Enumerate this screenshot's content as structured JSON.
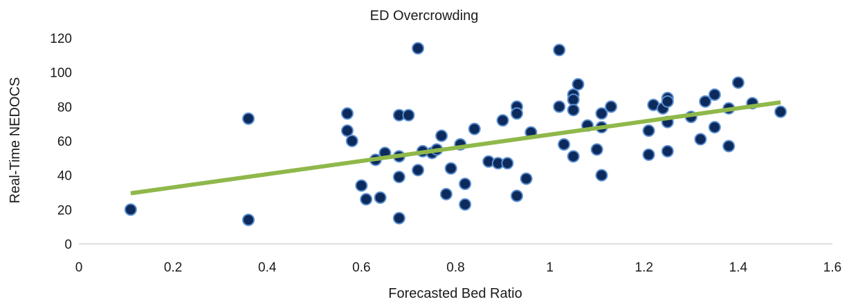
{
  "chart_data": {
    "type": "scatter",
    "title": "ED Overcrowding",
    "xlabel": "Forecasted Bed Ratio",
    "ylabel": "Real-Time NEDOCS",
    "xlim": [
      0,
      1.6
    ],
    "ylim": [
      0,
      120
    ],
    "x_ticks": [
      "0",
      "0.2",
      "0.4",
      "0.6",
      "0.8",
      "1",
      "1.2",
      "1.4",
      "1.6"
    ],
    "y_ticks": [
      "0",
      "20",
      "40",
      "60",
      "80",
      "100",
      "120"
    ],
    "grid": false,
    "legend": "none",
    "colors": {
      "point_fill": "#0d2a5c",
      "point_edge": "#5b8fd0",
      "trendline": "#8fb84a"
    },
    "trendline": {
      "x": [
        0.11,
        1.49
      ],
      "y": [
        29.5,
        82.5
      ]
    },
    "series": [
      {
        "points": [
          [
            0.11,
            20
          ],
          [
            0.36,
            73
          ],
          [
            0.36,
            14
          ],
          [
            0.57,
            76
          ],
          [
            0.57,
            66
          ],
          [
            0.58,
            60
          ],
          [
            0.6,
            34
          ],
          [
            0.61,
            26
          ],
          [
            0.63,
            49
          ],
          [
            0.64,
            27
          ],
          [
            0.65,
            53
          ],
          [
            0.68,
            75
          ],
          [
            0.68,
            15
          ],
          [
            0.68,
            39
          ],
          [
            0.68,
            51
          ],
          [
            0.7,
            75
          ],
          [
            0.72,
            114
          ],
          [
            0.72,
            43
          ],
          [
            0.73,
            54
          ],
          [
            0.75,
            53
          ],
          [
            0.76,
            55
          ],
          [
            0.77,
            63
          ],
          [
            0.78,
            29
          ],
          [
            0.79,
            44
          ],
          [
            0.81,
            58
          ],
          [
            0.82,
            35
          ],
          [
            0.82,
            23
          ],
          [
            0.84,
            67
          ],
          [
            0.87,
            48
          ],
          [
            0.89,
            47
          ],
          [
            0.9,
            72
          ],
          [
            0.91,
            47
          ],
          [
            0.93,
            80
          ],
          [
            0.93,
            76
          ],
          [
            0.93,
            28
          ],
          [
            0.95,
            38
          ],
          [
            0.96,
            65
          ],
          [
            1.02,
            113
          ],
          [
            1.02,
            80
          ],
          [
            1.03,
            58
          ],
          [
            1.05,
            87
          ],
          [
            1.05,
            84
          ],
          [
            1.05,
            78
          ],
          [
            1.05,
            51
          ],
          [
            1.06,
            93
          ],
          [
            1.08,
            69
          ],
          [
            1.1,
            55
          ],
          [
            1.11,
            76
          ],
          [
            1.11,
            68
          ],
          [
            1.11,
            40
          ],
          [
            1.13,
            80
          ],
          [
            1.21,
            66
          ],
          [
            1.21,
            52
          ],
          [
            1.22,
            81
          ],
          [
            1.24,
            79
          ],
          [
            1.25,
            85
          ],
          [
            1.25,
            83
          ],
          [
            1.25,
            71
          ],
          [
            1.25,
            54
          ],
          [
            1.3,
            74
          ],
          [
            1.32,
            61
          ],
          [
            1.33,
            83
          ],
          [
            1.35,
            87
          ],
          [
            1.35,
            68
          ],
          [
            1.38,
            79
          ],
          [
            1.38,
            57
          ],
          [
            1.4,
            94
          ],
          [
            1.43,
            82
          ],
          [
            1.49,
            77
          ]
        ]
      }
    ]
  }
}
